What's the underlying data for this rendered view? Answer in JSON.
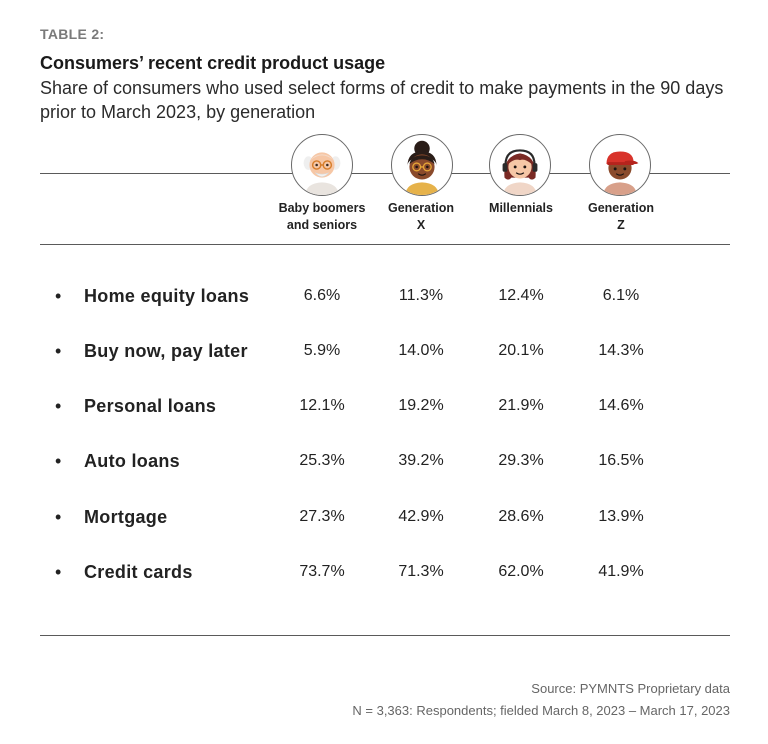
{
  "table_label": "TABLE 2:",
  "title": "Consumers’ recent credit product usage",
  "subtitle": "Share of consumers who used select forms of credit to make payments in the 90 days prior to March 2023, by generation",
  "columns": [
    {
      "label": "Baby boomers\nand seniors",
      "icon": "boomer-avatar-icon"
    },
    {
      "label": "Generation\nX",
      "icon": "genx-avatar-icon"
    },
    {
      "label": "Millennials",
      "icon": "millennial-avatar-icon"
    },
    {
      "label": "Generation\nZ",
      "icon": "genz-avatar-icon"
    }
  ],
  "bullet": "•",
  "rows": [
    {
      "label": "Home equity loans",
      "values": [
        "6.6%",
        "11.3%",
        "12.4%",
        "6.1%"
      ]
    },
    {
      "label": "Buy now, pay later",
      "values": [
        "5.9%",
        "14.0%",
        "20.1%",
        "14.3%"
      ]
    },
    {
      "label": "Personal loans",
      "values": [
        "12.1%",
        "19.2%",
        "21.9%",
        "14.6%"
      ]
    },
    {
      "label": "Auto loans",
      "values": [
        "25.3%",
        "39.2%",
        "29.3%",
        "16.5%"
      ]
    },
    {
      "label": "Mortgage",
      "values": [
        "27.3%",
        "42.9%",
        "28.6%",
        "13.9%"
      ]
    },
    {
      "label": "Credit cards",
      "values": [
        "73.7%",
        "71.3%",
        "62.0%",
        "41.9%"
      ]
    }
  ],
  "footer": {
    "source": "Source: PYMNTS Proprietary data",
    "note": "N = 3,363: Respondents; fielded March 8, 2023 – March 17, 2023"
  },
  "colors": {
    "rule": "#5a5a5a",
    "label_gray": "#7a7a7a",
    "footer_gray": "#666666",
    "genz_cap": "#d8332b"
  },
  "chart_data": {
    "type": "table",
    "title": "Consumers’ recent credit product usage",
    "subtitle": "Share of consumers who used select forms of credit to make payments in the 90 days prior to March 2023, by generation",
    "columns": [
      "Baby boomers and seniors",
      "Generation X",
      "Millennials",
      "Generation Z"
    ],
    "categories": [
      "Home equity loans",
      "Buy now, pay later",
      "Personal loans",
      "Auto loans",
      "Mortgage",
      "Credit cards"
    ],
    "unit": "%",
    "series": [
      {
        "name": "Baby boomers and seniors",
        "values": [
          6.6,
          5.9,
          12.1,
          25.3,
          27.3,
          73.7
        ]
      },
      {
        "name": "Generation X",
        "values": [
          11.3,
          14.0,
          19.2,
          39.2,
          42.9,
          71.3
        ]
      },
      {
        "name": "Millennials",
        "values": [
          12.4,
          20.1,
          21.9,
          29.3,
          28.6,
          62.0
        ]
      },
      {
        "name": "Generation Z",
        "values": [
          6.1,
          14.3,
          14.6,
          16.5,
          13.9,
          41.9
        ]
      }
    ]
  }
}
